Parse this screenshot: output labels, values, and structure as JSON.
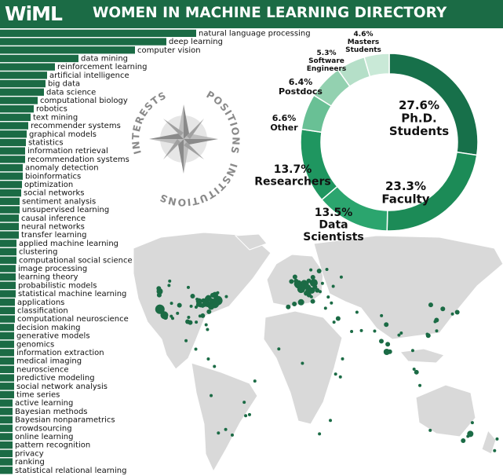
{
  "header": {
    "logo_text": "WiML",
    "title": "WOMEN IN MACHINE LEARNING DIRECTORY"
  },
  "compass": {
    "labels": [
      "INTERESTS",
      "POSITIONS",
      "INSTITUTIONS"
    ]
  },
  "colors": {
    "brand": "#1b6b45",
    "bar": "#1b6b45",
    "map_land": "#d9d9d9",
    "map_dot": "#1b6b45",
    "pie": [
      "#17704a",
      "#1c8b57",
      "#2ba56e",
      "#1f9660",
      "#69c095",
      "#93d1b0",
      "#b5dfc8",
      "#c9e9d7"
    ]
  },
  "chart_data": [
    {
      "type": "bar",
      "orientation": "horizontal",
      "title": "",
      "categories": [
        "natural language processing",
        "deep learning",
        "computer vision",
        "data mining",
        "reinforcement learning",
        "artificial intelligence",
        "big data",
        "data science",
        "computational biology",
        "robotics",
        "text mining",
        "recommender systems",
        "graphical models",
        "statistics",
        "information retrieval",
        "recommendation systems",
        "anomaly detection",
        "bioinformatics",
        "optimization",
        "social networks",
        "sentiment analysis",
        "unsupervised learning",
        "causal inference",
        "neural networks",
        "transfer learning",
        "applied machine learning",
        "clustering",
        "computational social science",
        "image processing",
        "learning theory",
        "probabilistic models",
        "statistical machine learning",
        "applications",
        "classification",
        "computational neuroscience",
        "decision making",
        "generative models",
        "genomics",
        "information extraction",
        "medical imaging",
        "neuroscience",
        "predictive modeling",
        "social network analysis",
        "time series",
        "active learning",
        "Bayesian methods",
        "Bayesian nonparametrics",
        "crowdsourcing",
        "online learning",
        "pattern recognition",
        "privacy",
        "ranking",
        "statistical relational learning"
      ],
      "values": [
        250,
        212,
        172,
        100,
        70,
        60,
        58,
        56,
        48,
        43,
        39,
        36,
        34,
        33,
        32,
        32,
        29,
        29,
        28,
        27,
        25,
        25,
        24,
        24,
        24,
        21,
        21,
        21,
        20,
        20,
        20,
        20,
        19,
        19,
        19,
        18,
        18,
        18,
        18,
        18,
        18,
        18,
        18,
        18,
        16,
        16,
        16,
        16,
        16,
        16,
        16,
        16,
        16
      ],
      "xlabel": "",
      "ylabel": "",
      "grid": false
    },
    {
      "type": "pie",
      "donut": true,
      "title": "",
      "slices": [
        {
          "label": "Ph.D. Students",
          "value": 27.6,
          "value_text": "27.6%"
        },
        {
          "label": "Faculty",
          "value": 23.3,
          "value_text": "23.3%"
        },
        {
          "label": "Data Scientists",
          "value": 13.5,
          "value_text": "13.5%"
        },
        {
          "label": "Researchers",
          "value": 13.7,
          "value_text": "13.7%"
        },
        {
          "label": "Other",
          "value": 6.6,
          "value_text": "6.6%"
        },
        {
          "label": "Postdocs",
          "value": 6.4,
          "value_text": "6.4%"
        },
        {
          "label": "Software Engineers",
          "value": 5.3,
          "value_text": "5.3%"
        },
        {
          "label": "Masters Students",
          "value": 4.6,
          "value_text": "4.6%"
        }
      ]
    },
    {
      "type": "scatter",
      "subtype": "map",
      "title": "",
      "xlabel": "longitude",
      "ylabel": "latitude",
      "xlim": [
        -180,
        180
      ],
      "ylim": [
        -58,
        84
      ],
      "points": [
        [
          -122.4,
          37.8,
          4
        ],
        [
          -122.1,
          37.4,
          5
        ],
        [
          -121.9,
          37.3,
          4
        ],
        [
          -118.2,
          34.0,
          4
        ],
        [
          -122.3,
          47.6,
          3
        ],
        [
          -123.1,
          49.3,
          2
        ],
        [
          -117.2,
          32.7,
          2
        ],
        [
          -112.1,
          33.4,
          1
        ],
        [
          -104.9,
          39.7,
          2
        ],
        [
          -111.9,
          40.8,
          1
        ],
        [
          -97.7,
          30.3,
          2
        ],
        [
          -95.4,
          29.8,
          2
        ],
        [
          -96.8,
          32.8,
          1
        ],
        [
          -87.6,
          41.9,
          3
        ],
        [
          -83.7,
          42.3,
          2
        ],
        [
          -80.0,
          40.4,
          3
        ],
        [
          -79.4,
          43.7,
          3
        ],
        [
          -75.7,
          45.4,
          2
        ],
        [
          -73.6,
          45.5,
          3
        ],
        [
          -71.1,
          42.4,
          5
        ],
        [
          -72.9,
          41.3,
          2
        ],
        [
          -74.0,
          40.7,
          5
        ],
        [
          -75.2,
          39.9,
          3
        ],
        [
          -76.6,
          39.3,
          2
        ],
        [
          -77.0,
          38.9,
          3
        ],
        [
          -78.9,
          36.0,
          2
        ],
        [
          -84.4,
          33.7,
          2
        ],
        [
          -86.8,
          33.5,
          1
        ],
        [
          -90.1,
          30.0,
          1
        ],
        [
          -81.4,
          28.5,
          1
        ],
        [
          -80.2,
          25.8,
          1
        ],
        [
          -93.3,
          44.9,
          2
        ],
        [
          -89.4,
          43.1,
          1
        ],
        [
          -83.0,
          40.0,
          2
        ],
        [
          -86.2,
          39.8,
          2
        ],
        [
          -90.2,
          38.6,
          1
        ],
        [
          -94.6,
          39.1,
          1
        ],
        [
          -88.2,
          40.1,
          2
        ],
        [
          -84.5,
          39.1,
          1
        ],
        [
          -81.7,
          41.5,
          2
        ],
        [
          -78.9,
          42.9,
          1
        ],
        [
          -76.5,
          42.4,
          2
        ],
        [
          -99.1,
          19.4,
          1
        ],
        [
          -74.1,
          4.7,
          1
        ],
        [
          -77.0,
          -12.0,
          1
        ],
        [
          -70.6,
          -33.4,
          1
        ],
        [
          -58.4,
          -34.6,
          1
        ],
        [
          -46.6,
          -23.5,
          1
        ],
        [
          -43.2,
          -22.9,
          1
        ],
        [
          -0.1,
          51.5,
          4
        ],
        [
          -1.3,
          51.8,
          3
        ],
        [
          0.1,
          52.2,
          3
        ],
        [
          -3.2,
          55.9,
          2
        ],
        [
          -2.2,
          53.5,
          2
        ],
        [
          -6.3,
          53.3,
          2
        ],
        [
          2.3,
          48.9,
          4
        ],
        [
          4.9,
          52.4,
          3
        ],
        [
          4.4,
          50.8,
          2
        ],
        [
          6.1,
          49.6,
          1
        ],
        [
          8.7,
          50.1,
          2
        ],
        [
          13.4,
          52.5,
          4
        ],
        [
          11.6,
          48.1,
          3
        ],
        [
          9.2,
          48.8,
          3
        ],
        [
          8.5,
          47.4,
          3
        ],
        [
          6.6,
          46.5,
          2
        ],
        [
          9.0,
          53.6,
          2
        ],
        [
          7.0,
          51.5,
          2
        ],
        [
          12.5,
          41.9,
          2
        ],
        [
          9.2,
          45.5,
          2
        ],
        [
          11.3,
          44.5,
          1
        ],
        [
          2.2,
          41.4,
          3
        ],
        [
          -3.7,
          40.4,
          2
        ],
        [
          -9.1,
          38.7,
          2
        ],
        [
          16.4,
          48.2,
          2
        ],
        [
          14.4,
          50.1,
          2
        ],
        [
          19.0,
          47.5,
          1
        ],
        [
          21.0,
          52.2,
          1
        ],
        [
          18.1,
          59.3,
          2
        ],
        [
          12.6,
          55.7,
          2
        ],
        [
          10.8,
          59.9,
          1
        ],
        [
          24.9,
          60.2,
          1
        ],
        [
          23.7,
          38.0,
          1
        ],
        [
          26.1,
          44.4,
          1
        ],
        [
          30.5,
          50.5,
          1
        ],
        [
          37.6,
          55.8,
          1
        ],
        [
          28.9,
          41.0,
          1
        ],
        [
          34.8,
          32.1,
          2
        ],
        [
          35.2,
          31.8,
          1
        ],
        [
          31.2,
          30.0,
          1
        ],
        [
          46.7,
          24.7,
          1
        ],
        [
          51.4,
          35.7,
          1
        ],
        [
          55.3,
          25.2,
          1
        ],
        [
          77.2,
          28.6,
          2
        ],
        [
          72.9,
          19.1,
          2
        ],
        [
          77.6,
          13.0,
          3
        ],
        [
          80.3,
          13.1,
          2
        ],
        [
          78.5,
          17.4,
          2
        ],
        [
          88.4,
          22.6,
          1
        ],
        [
          73.0,
          33.7,
          1
        ],
        [
          67.0,
          24.9,
          1
        ],
        [
          90.4,
          23.8,
          1
        ],
        [
          103.8,
          1.4,
          2
        ],
        [
          101.7,
          3.1,
          1
        ],
        [
          100.5,
          13.8,
          1
        ],
        [
          106.8,
          -6.2,
          1
        ],
        [
          114.2,
          22.3,
          2
        ],
        [
          116.4,
          39.9,
          2
        ],
        [
          121.5,
          31.2,
          2
        ],
        [
          120.2,
          30.3,
          1
        ],
        [
          113.3,
          23.1,
          1
        ],
        [
          127.0,
          37.6,
          2
        ],
        [
          139.7,
          35.7,
          2
        ],
        [
          135.5,
          34.7,
          1
        ],
        [
          121.6,
          25.0,
          1
        ],
        [
          151.2,
          -33.9,
          3
        ],
        [
          144.96,
          -37.8,
          2
        ],
        [
          153.0,
          -27.5,
          1
        ],
        [
          115.9,
          -31.9,
          1
        ],
        [
          149.1,
          -35.3,
          1
        ],
        [
          174.8,
          -36.8,
          1
        ],
        [
          172.6,
          -43.5,
          1
        ],
        [
          18.4,
          -33.9,
          1
        ],
        [
          28.0,
          -26.2,
          1
        ],
        [
          36.8,
          -1.3,
          1
        ],
        [
          3.4,
          6.5,
          1
        ],
        [
          32.6,
          0.3,
          1
        ],
        [
          -17.4,
          14.7,
          1
        ],
        [
          38.7,
          9.0,
          1
        ],
        [
          -90.5,
          14.6,
          1
        ],
        [
          -79.5,
          8.98,
          1
        ],
        [
          -64.2,
          -31.4,
          1
        ],
        [
          -47.9,
          -15.8,
          1
        ],
        [
          -38.5,
          -3.7,
          1
        ],
        [
          -110.9,
          32.2,
          1
        ],
        [
          -106.6,
          35.1,
          1
        ],
        [
          -122.7,
          45.5,
          2
        ],
        [
          -114.1,
          51.0,
          1
        ],
        [
          -113.5,
          53.5,
          1
        ],
        [
          -97.1,
          49.9,
          1
        ],
        [
          -63.6,
          44.6,
          1
        ],
        [
          -71.2,
          46.8,
          1
        ],
        [
          -80.5,
          43.5,
          2
        ]
      ]
    }
  ]
}
